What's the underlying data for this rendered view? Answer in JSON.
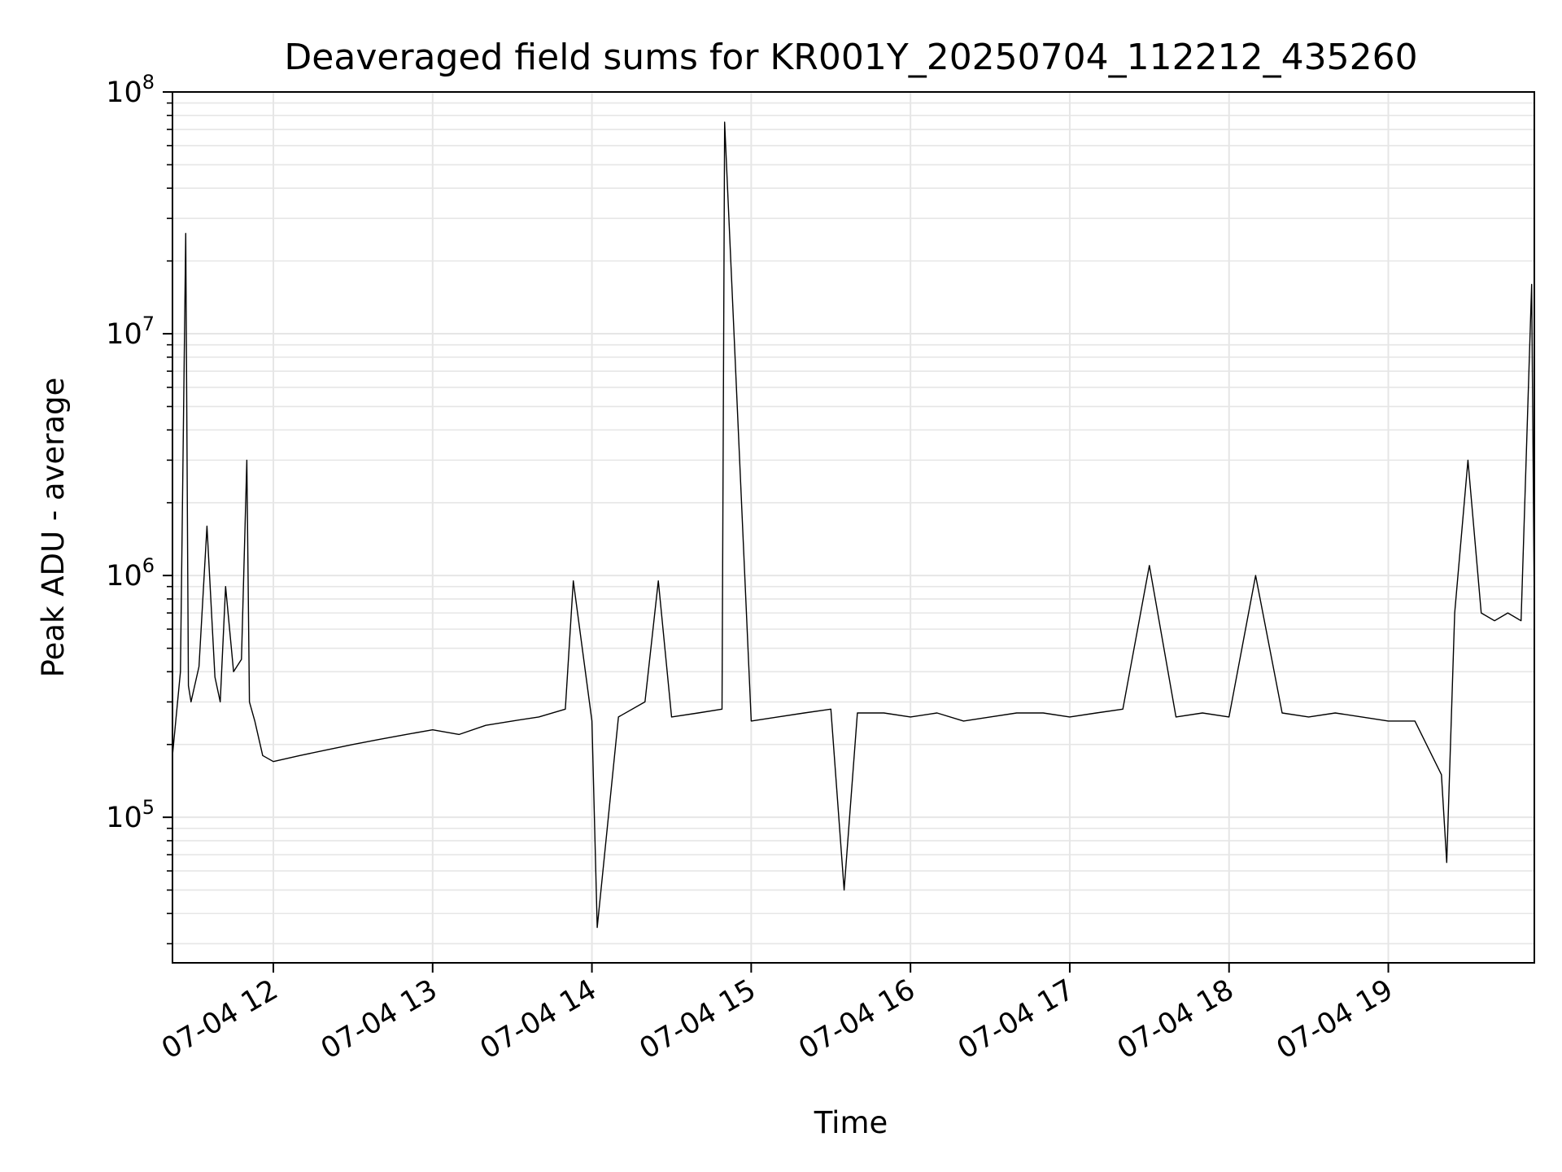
{
  "chart_data": {
    "type": "line",
    "title": "Deaveraged field sums for KR001Y_20250704_112212_435260",
    "xlabel": "Time",
    "ylabel": "Peak ADU - average",
    "yscale": "log",
    "grid": true,
    "line_color": "#000000",
    "grid_color": "#e6e6e6",
    "xlim": [
      "2025-07-04 11:22",
      "2025-07-04 19:55"
    ],
    "ylim": [
      25000,
      100000000
    ],
    "x_ticks": [
      {
        "value": "2025-07-04 12:00",
        "label": "07-04 12"
      },
      {
        "value": "2025-07-04 13:00",
        "label": "07-04 13"
      },
      {
        "value": "2025-07-04 14:00",
        "label": "07-04 14"
      },
      {
        "value": "2025-07-04 15:00",
        "label": "07-04 15"
      },
      {
        "value": "2025-07-04 16:00",
        "label": "07-04 16"
      },
      {
        "value": "2025-07-04 17:00",
        "label": "07-04 17"
      },
      {
        "value": "2025-07-04 18:00",
        "label": "07-04 18"
      },
      {
        "value": "2025-07-04 19:00",
        "label": "07-04 19"
      }
    ],
    "y_ticks": [
      {
        "value": 100000,
        "base": "10",
        "exp": "5"
      },
      {
        "value": 1000000,
        "base": "10",
        "exp": "6"
      },
      {
        "value": 10000000,
        "base": "10",
        "exp": "7"
      },
      {
        "value": 100000000,
        "base": "10",
        "exp": "8"
      }
    ],
    "series": [
      {
        "x": [
          "2025-07-04 11:22",
          "2025-07-04 11:25",
          "2025-07-04 11:27",
          "2025-07-04 11:28",
          "2025-07-04 11:29",
          "2025-07-04 11:32",
          "2025-07-04 11:35",
          "2025-07-04 11:38",
          "2025-07-04 11:40",
          "2025-07-04 11:42",
          "2025-07-04 11:45",
          "2025-07-04 11:48",
          "2025-07-04 11:50",
          "2025-07-04 11:51",
          "2025-07-04 11:53",
          "2025-07-04 11:56",
          "2025-07-04 12:00",
          "2025-07-04 12:10",
          "2025-07-04 12:20",
          "2025-07-04 12:30",
          "2025-07-04 12:40",
          "2025-07-04 12:50",
          "2025-07-04 13:00",
          "2025-07-04 13:10",
          "2025-07-04 13:20",
          "2025-07-04 13:30",
          "2025-07-04 13:40",
          "2025-07-04 13:50",
          "2025-07-04 13:53",
          "2025-07-04 14:00",
          "2025-07-04 14:02",
          "2025-07-04 14:10",
          "2025-07-04 14:20",
          "2025-07-04 14:25",
          "2025-07-04 14:30",
          "2025-07-04 14:40",
          "2025-07-04 14:49",
          "2025-07-04 14:50",
          "2025-07-04 15:00",
          "2025-07-04 15:10",
          "2025-07-04 15:20",
          "2025-07-04 15:30",
          "2025-07-04 15:35",
          "2025-07-04 15:40",
          "2025-07-04 15:50",
          "2025-07-04 16:00",
          "2025-07-04 16:10",
          "2025-07-04 16:20",
          "2025-07-04 16:30",
          "2025-07-04 16:40",
          "2025-07-04 16:50",
          "2025-07-04 17:00",
          "2025-07-04 17:10",
          "2025-07-04 17:20",
          "2025-07-04 17:30",
          "2025-07-04 17:40",
          "2025-07-04 17:50",
          "2025-07-04 18:00",
          "2025-07-04 18:10",
          "2025-07-04 18:20",
          "2025-07-04 18:30",
          "2025-07-04 18:40",
          "2025-07-04 18:50",
          "2025-07-04 19:00",
          "2025-07-04 19:10",
          "2025-07-04 19:20",
          "2025-07-04 19:22",
          "2025-07-04 19:25",
          "2025-07-04 19:30",
          "2025-07-04 19:35",
          "2025-07-04 19:40",
          "2025-07-04 19:45",
          "2025-07-04 19:50",
          "2025-07-04 19:54",
          "2025-07-04 19:55"
        ],
        "y": [
          180000,
          400000,
          26000000,
          350000,
          300000,
          420000,
          1600000,
          380000,
          300000,
          900000,
          400000,
          450000,
          3000000,
          300000,
          250000,
          180000,
          170000,
          180000,
          190000,
          200000,
          210000,
          220000,
          230000,
          220000,
          240000,
          250000,
          260000,
          280000,
          950000,
          250000,
          35000,
          260000,
          300000,
          950000,
          260000,
          270000,
          280000,
          75000000,
          250000,
          260000,
          270000,
          280000,
          50000,
          270000,
          270000,
          260000,
          270000,
          250000,
          260000,
          270000,
          270000,
          260000,
          270000,
          280000,
          1100000,
          260000,
          270000,
          260000,
          1000000,
          270000,
          260000,
          270000,
          260000,
          250000,
          250000,
          150000,
          65000,
          700000,
          3000000,
          700000,
          650000,
          700000,
          650000,
          16000000,
          700000
        ]
      }
    ]
  }
}
